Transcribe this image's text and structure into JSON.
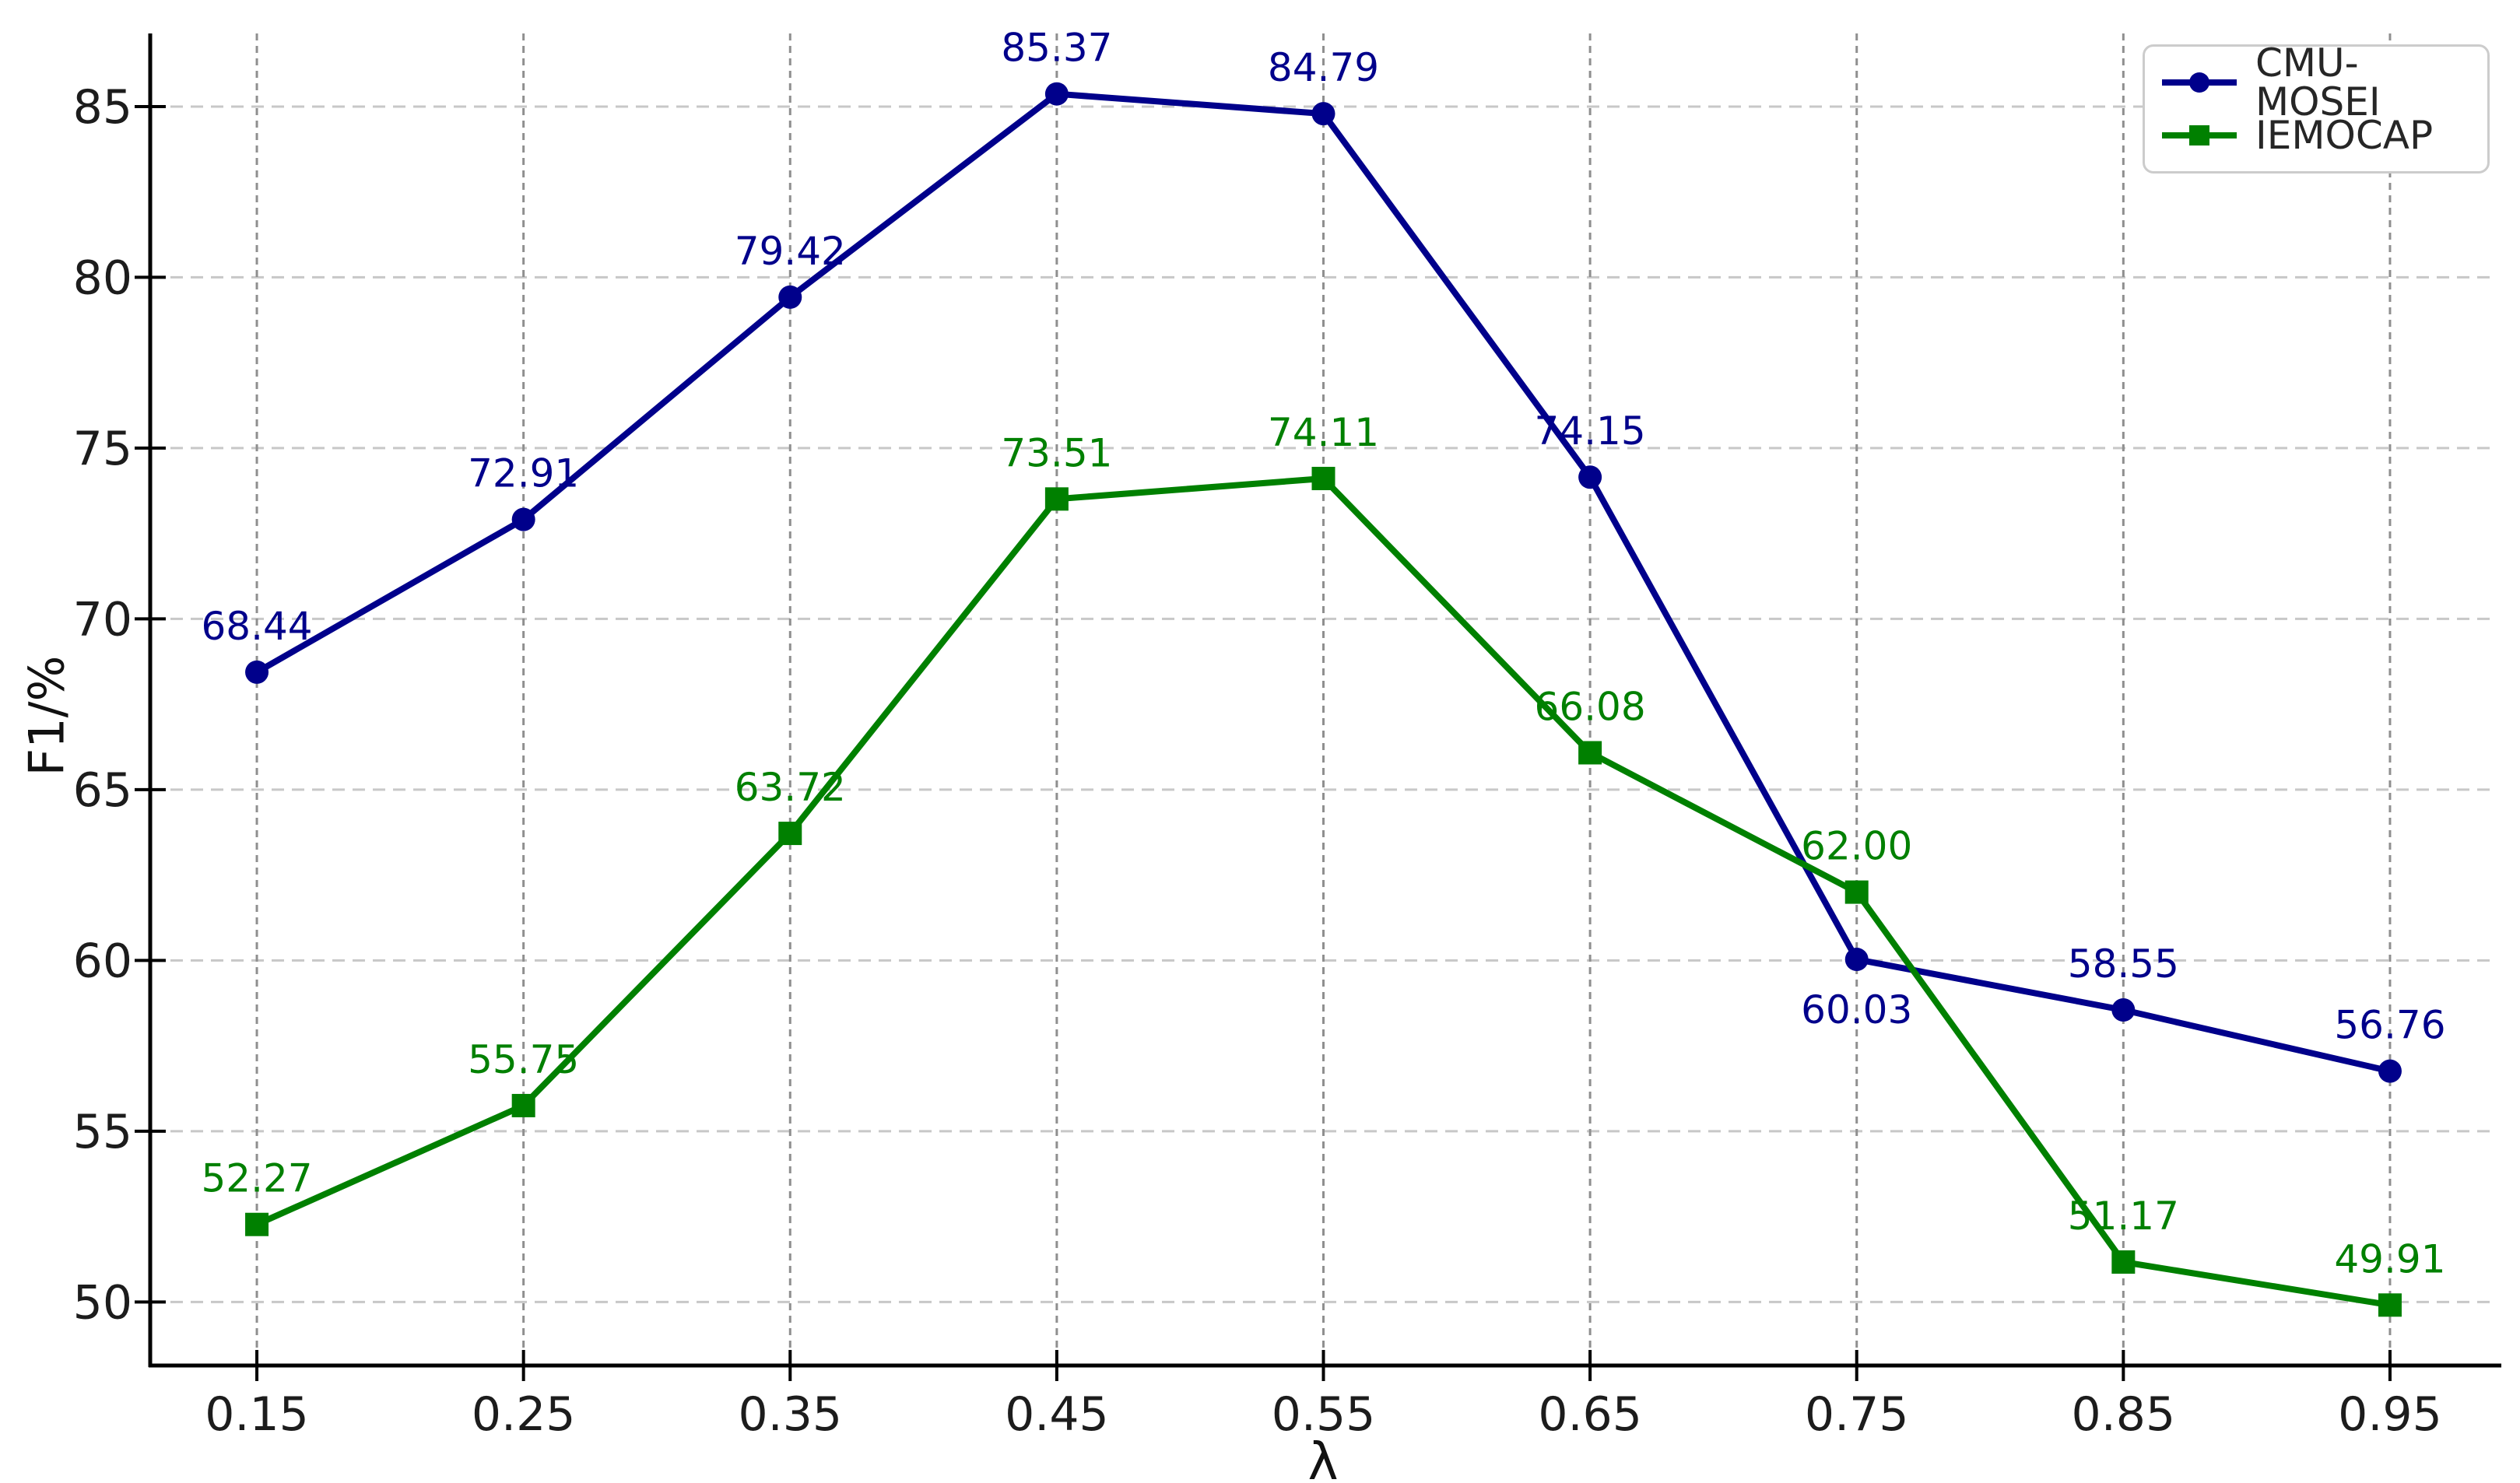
{
  "figure": {
    "background": "#ffffff"
  },
  "chart_data": {
    "type": "line",
    "title": "",
    "xlabel": "λ",
    "ylabel": "F1/%",
    "x_values": [
      0.15,
      0.25,
      0.35,
      0.45,
      0.55,
      0.65,
      0.75,
      0.85,
      0.95
    ],
    "x_tick_labels": [
      "0.15",
      "0.25",
      "0.35",
      "0.45",
      "0.55",
      "0.65",
      "0.75",
      "0.85",
      "0.95"
    ],
    "y_ticks": [
      50,
      55,
      60,
      65,
      70,
      75,
      80,
      85
    ],
    "xlim": [
      0.11,
      0.99
    ],
    "ylim": [
      48.14,
      87.14
    ],
    "grid": true,
    "legend": {
      "position": "upper right",
      "entries": [
        "CMU-MOSEI",
        "IEMOCAP"
      ]
    },
    "series": [
      {
        "name": "CMU-MOSEI",
        "color": "#00008B",
        "marker": "circle",
        "values": [
          68.44,
          72.91,
          79.42,
          85.37,
          84.79,
          74.15,
          60.03,
          58.55,
          56.76
        ],
        "point_labels": [
          "68.44",
          "72.91",
          "79.42",
          "85.37",
          "84.79",
          "74.15",
          "60.03",
          "58.55",
          "56.76"
        ],
        "label_placement": [
          "above",
          "above",
          "above",
          "above",
          "above",
          "above",
          "below",
          "above",
          "above"
        ]
      },
      {
        "name": "IEMOCAP",
        "color": "#008000",
        "marker": "square",
        "values": [
          52.27,
          55.75,
          63.72,
          73.51,
          74.11,
          66.08,
          62.0,
          51.17,
          49.91
        ],
        "point_labels": [
          "52.27",
          "55.75",
          "63.72",
          "73.51",
          "74.11",
          "66.08",
          "62.00",
          "51.17",
          "49.91"
        ],
        "label_placement": [
          "above",
          "above",
          "above",
          "above",
          "above",
          "above",
          "above",
          "above",
          "above"
        ]
      }
    ],
    "style": {
      "grid_color_horizontal": "#c8c8c8",
      "grid_color_vertical": "#8f8f8f",
      "axis_color": "#000000",
      "tick_label_color": "#1c1c1c",
      "legend_border_color": "#cccccc",
      "legend_text_color": "#262626"
    }
  }
}
